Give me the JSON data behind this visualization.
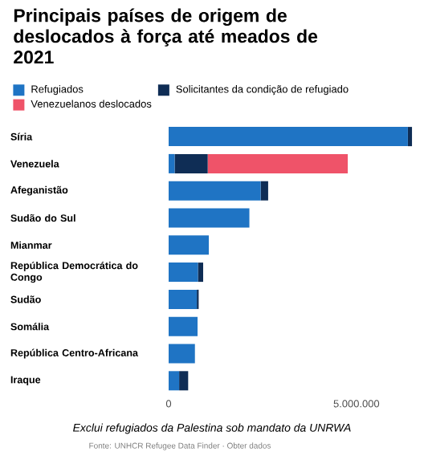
{
  "chart_data": {
    "type": "bar",
    "orientation": "horizontal",
    "stacked": true,
    "legend": "top",
    "title": "Principais países de origem de deslocados à força até meados de 2021",
    "categories": [
      "Síria",
      "Venezuela",
      "Afeganistão",
      "Sudão do Sul",
      "Mianmar",
      "República Democrática do Congo",
      "Sudão",
      "Somália",
      "República Centro-Africana",
      "Iraque"
    ],
    "series": [
      {
        "name": "Refugiados",
        "color": "#1f74c4",
        "values": [
          6370000,
          160000,
          2450000,
          2150000,
          1070000,
          780000,
          750000,
          770000,
          700000,
          280000
        ]
      },
      {
        "name": "Solicitantes da condição de refugiado",
        "color": "#0f2d55",
        "values": [
          110000,
          880000,
          200000,
          null,
          null,
          140000,
          50000,
          null,
          null,
          240000
        ]
      },
      {
        "name": "Venezuelanos deslocados",
        "color": "#ef5369",
        "values": [
          null,
          3730000,
          null,
          null,
          null,
          null,
          null,
          null,
          null,
          null
        ]
      }
    ],
    "xlim": [
      0,
      6500000
    ],
    "xticks": [
      0,
      {
        "value": 5000000,
        "label": "5.000.000"
      }
    ],
    "annotations": [
      "Exclui refugiados da Palestina sob mandato da UNRWA",
      "Fonte: UNHCR Refugee Data Finder · Obter dados"
    ]
  }
}
